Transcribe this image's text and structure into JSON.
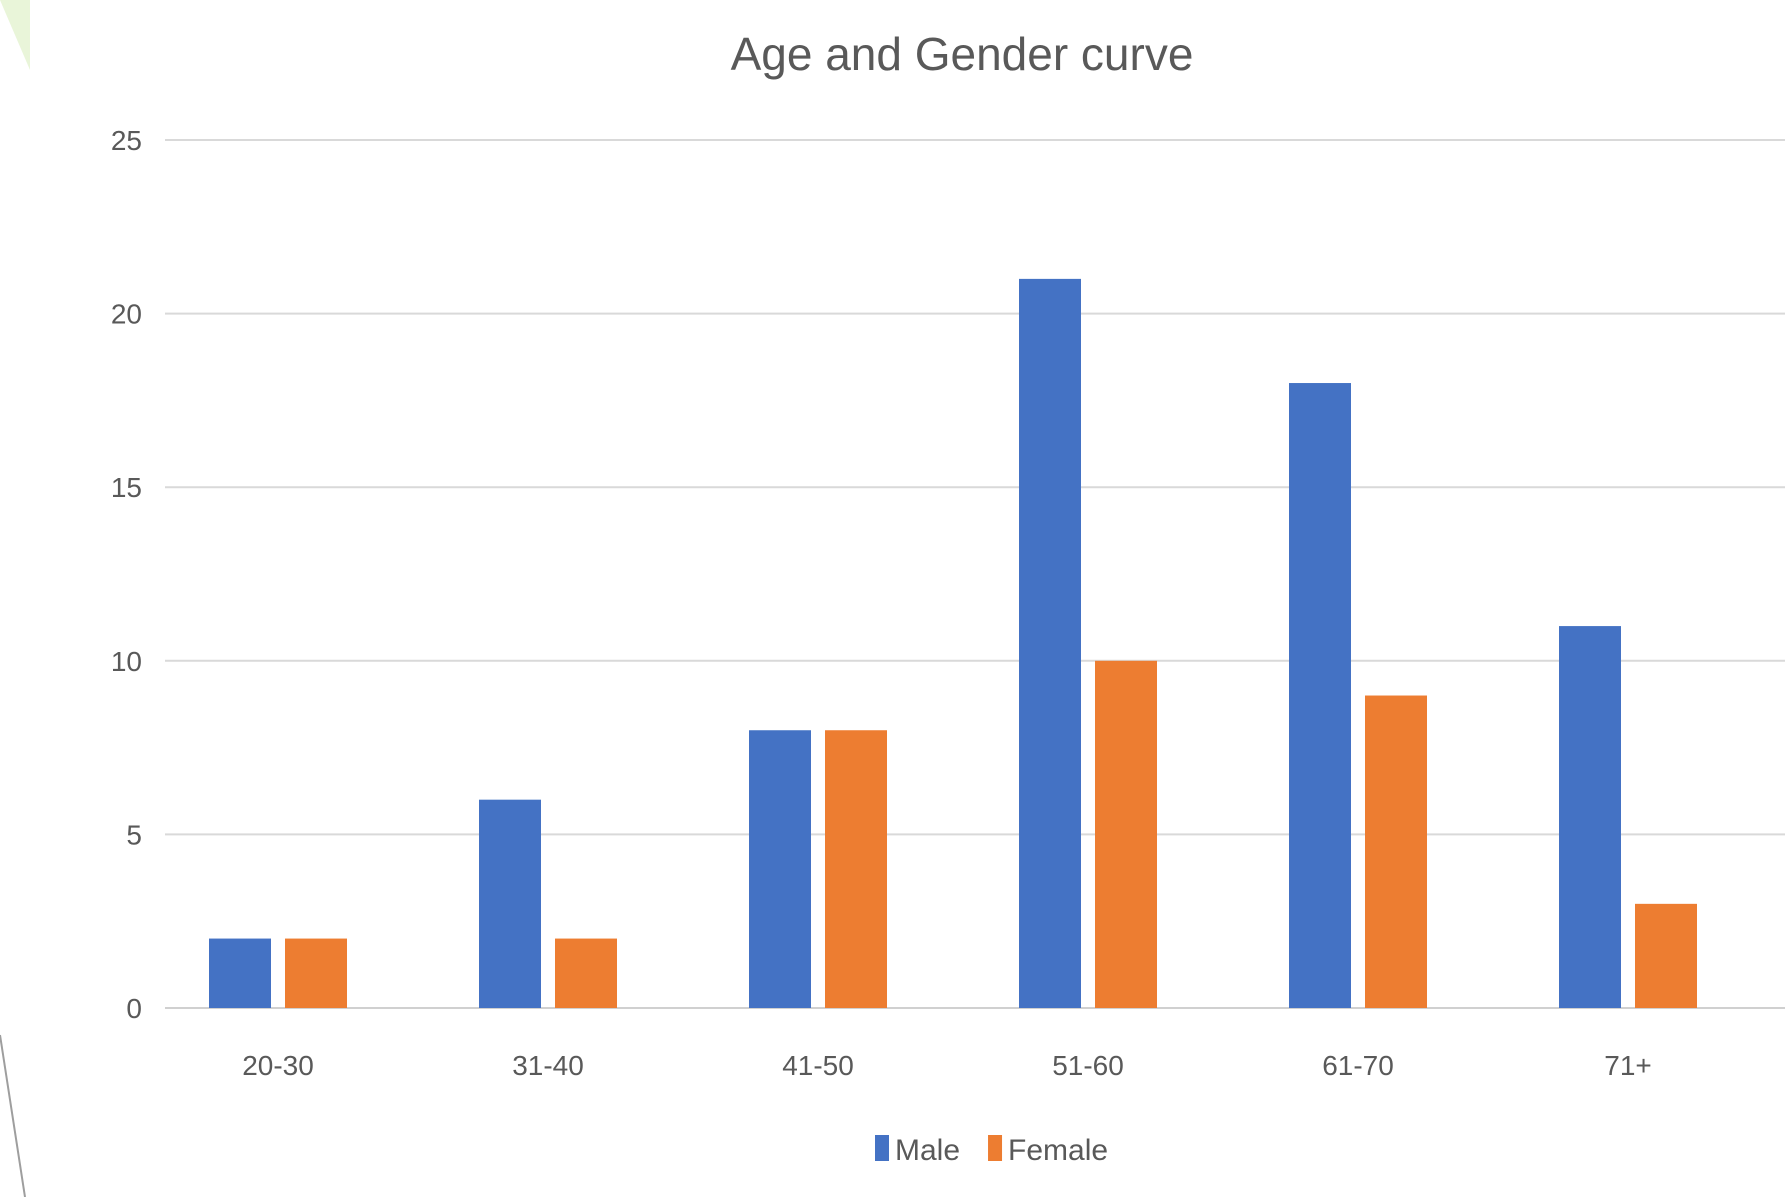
{
  "chart_data": {
    "type": "bar",
    "title": "Age and Gender curve",
    "xlabel": "",
    "ylabel": "",
    "categories": [
      "20-30",
      "31-40",
      "41-50",
      "51-60",
      "61-70",
      "71+"
    ],
    "series": [
      {
        "name": "Male",
        "color": "#4472C4",
        "values": [
          2,
          6,
          8,
          21,
          18,
          11
        ]
      },
      {
        "name": "Female",
        "color": "#ED7D31",
        "values": [
          2,
          2,
          8,
          10,
          9,
          3
        ]
      }
    ],
    "ylim": [
      0,
      25
    ],
    "yticks": [
      "0",
      "5",
      "10",
      "15",
      "20",
      "25"
    ],
    "grid": true,
    "legend_position": "bottom"
  },
  "decoration": {
    "accent_color": "#92D050"
  }
}
